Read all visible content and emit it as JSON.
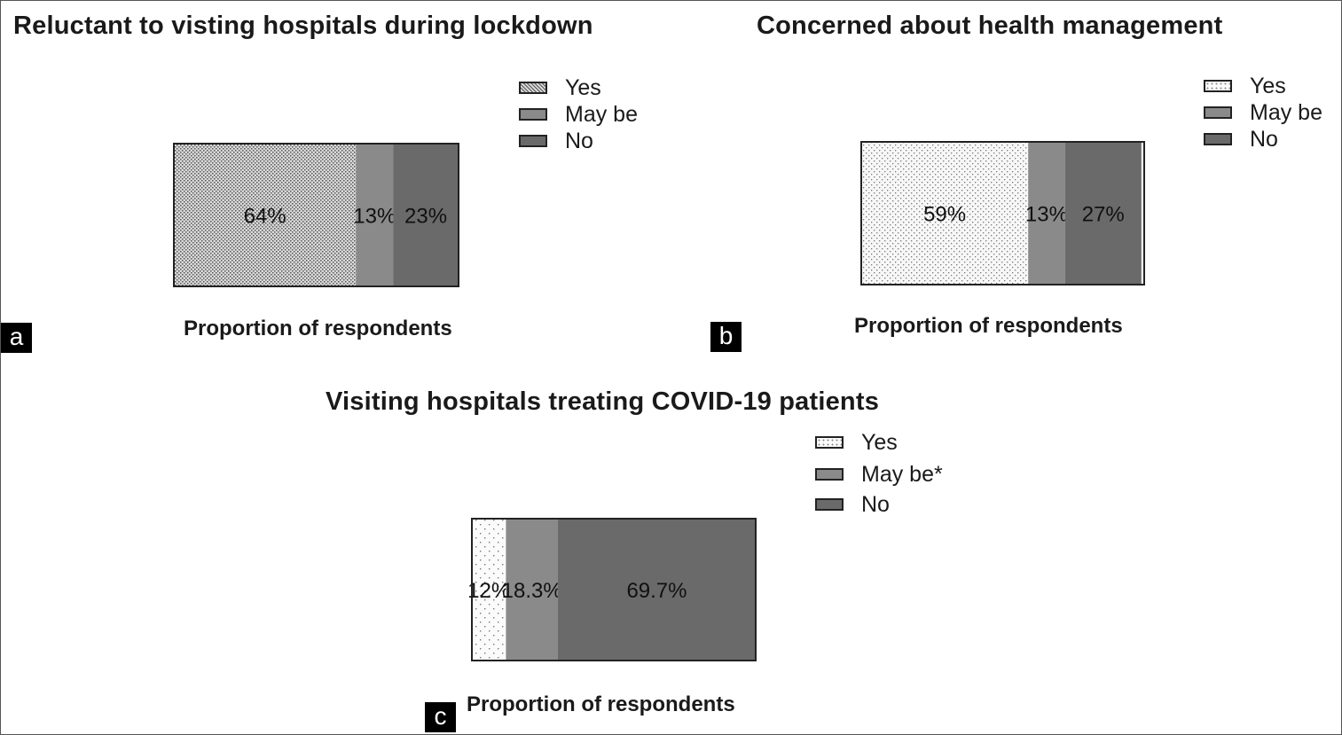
{
  "colors": {
    "yes_fill": "#f2f2f2",
    "maybe_fill": "#8a8a8a",
    "no_fill": "#6a6a6a",
    "border": "#222222",
    "panel_label_bg": "#000000"
  },
  "chart_data": [
    {
      "type": "bar",
      "orientation": "horizontal",
      "stacked": true,
      "panel_label": "a",
      "title": "Reluctant to visting hospitals during lockdown",
      "xlabel": "Proportion of respondents",
      "xlim": [
        0,
        100
      ],
      "legend_position": "top-right",
      "series": [
        {
          "name": "Yes",
          "value": 64,
          "label": "64%",
          "pattern": "dense-dots"
        },
        {
          "name": "May be",
          "value": 13,
          "label": "13%",
          "pattern": "solid"
        },
        {
          "name": "No",
          "value": 23,
          "label": "23%",
          "pattern": "solid"
        }
      ]
    },
    {
      "type": "bar",
      "orientation": "horizontal",
      "stacked": true,
      "panel_label": "b",
      "title": "Concerned about health management",
      "xlabel": "Proportion of respondents",
      "xlim": [
        0,
        100
      ],
      "legend_position": "top-right",
      "series": [
        {
          "name": "Yes",
          "value": 59,
          "label": "59%",
          "pattern": "fine-dots"
        },
        {
          "name": "May be",
          "value": 13,
          "label": "13%",
          "pattern": "solid"
        },
        {
          "name": "No",
          "value": 27,
          "label": "27%",
          "pattern": "solid"
        }
      ]
    },
    {
      "type": "bar",
      "orientation": "horizontal",
      "stacked": true,
      "panel_label": "c",
      "title": "Visiting hospitals treating COVID-19 patients",
      "xlabel": "Proportion of respondents",
      "xlim": [
        0,
        100
      ],
      "legend_position": "top-right",
      "series": [
        {
          "name": "Yes",
          "value": 12,
          "label": "12%",
          "pattern": "sparse-dots"
        },
        {
          "name": "May be*",
          "value": 18.3,
          "label": "18.3%",
          "pattern": "solid"
        },
        {
          "name": "No",
          "value": 69.7,
          "label": "69.7%",
          "pattern": "solid"
        }
      ]
    }
  ]
}
